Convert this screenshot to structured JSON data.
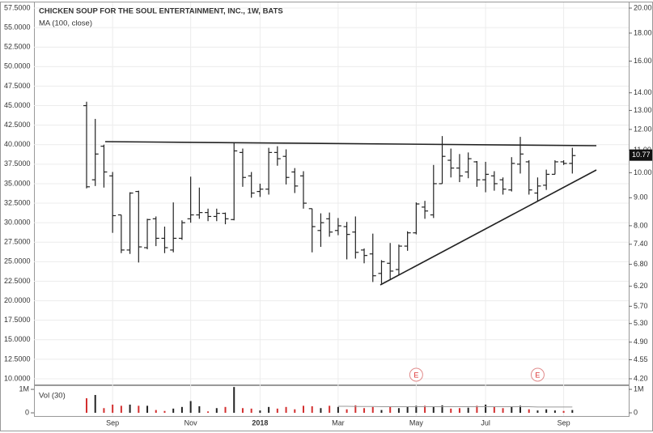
{
  "chart_data": [
    {
      "type": "ohlc",
      "title": "CHICKEN SOUP FOR THE SOUL ENTERTAINMENT, INC., 1W, BATS",
      "subtitle": "MA (100, close)",
      "categories": [
        null,
        null,
        null,
        "Sep",
        null,
        null,
        null,
        null,
        null,
        null,
        null,
        null,
        "Nov",
        null,
        null,
        null,
        null,
        null,
        null,
        null,
        "2018",
        null,
        null,
        null,
        null,
        null,
        null,
        null,
        null,
        "Mar",
        null,
        null,
        null,
        null,
        null,
        null,
        null,
        null,
        "May",
        null,
        null,
        null,
        null,
        null,
        null,
        null,
        "Jul",
        null,
        null,
        null,
        null,
        null,
        null,
        null,
        null,
        "Sep",
        null
      ],
      "events": [
        null,
        null,
        null,
        null,
        null,
        null,
        null,
        null,
        null,
        null,
        null,
        null,
        null,
        null,
        null,
        null,
        null,
        null,
        null,
        null,
        null,
        null,
        null,
        null,
        null,
        null,
        null,
        null,
        null,
        null,
        null,
        null,
        null,
        null,
        null,
        null,
        null,
        null,
        "E",
        null,
        null,
        null,
        null,
        null,
        null,
        null,
        null,
        null,
        null,
        null,
        null,
        null,
        "E",
        null,
        null,
        null,
        null
      ],
      "open": [
        45,
        35.5,
        39.8,
        36,
        31,
        26.5,
        34,
        26.8,
        30.5,
        28,
        26.5,
        28,
        30.5,
        31,
        31.3,
        30.8,
        31.2,
        30.4,
        39,
        36,
        34,
        34.3,
        39,
        38.5,
        36.5,
        36,
        31.8,
        29,
        30.5,
        29,
        29.5,
        28.8,
        26.5,
        26,
        23.5,
        24.8,
        24,
        27,
        28.7,
        32,
        31,
        35,
        38,
        37,
        36.5,
        37.8,
        35.5,
        36,
        35.5,
        34.2,
        37.5,
        37.8,
        33.8,
        34.8,
        36.2,
        37.8,
        37.6
      ],
      "high": [
        45.5,
        43.3,
        40,
        36.5,
        31,
        33.9,
        34.1,
        30.5,
        30.8,
        29.5,
        32.6,
        30.3,
        35.9,
        34.5,
        31.8,
        31.8,
        31.3,
        40.2,
        39.5,
        36.5,
        35,
        39.6,
        39.8,
        39.4,
        37,
        36.6,
        31.8,
        31.2,
        31.3,
        30.6,
        30.1,
        30.8,
        26.7,
        28.6,
        25.2,
        27.4,
        27.2,
        28.9,
        32.6,
        32.8,
        37.4,
        41.1,
        39.5,
        38.8,
        39,
        37.9,
        37.8,
        36.6,
        35.8,
        38.4,
        41,
        38,
        35.8,
        36.8,
        38,
        38,
        39.6
      ],
      "low": [
        34.4,
        34.7,
        34.5,
        28.7,
        26.1,
        26,
        24.9,
        26.6,
        27,
        26.1,
        26.2,
        27.8,
        30,
        30.5,
        30.2,
        30.2,
        29.8,
        30.3,
        34.6,
        33.2,
        33.3,
        33.6,
        37.3,
        34.9,
        33.8,
        31.8,
        26.2,
        26.9,
        28.2,
        28.4,
        25.3,
        25.4,
        24.8,
        22.4,
        22.2,
        22.8,
        23.3,
        26.4,
        28.5,
        30.5,
        30.6,
        35,
        35.8,
        35.2,
        35.7,
        34.6,
        33.9,
        34.1,
        33.6,
        34,
        36.3,
        33.6,
        32.8,
        34.2,
        36.2,
        37.4,
        36.3
      ],
      "close": [
        34.6,
        38.8,
        36.5,
        30.9,
        26.5,
        33.8,
        26.9,
        30.4,
        28,
        26.8,
        28,
        30,
        31,
        31.3,
        30.8,
        31.2,
        30.5,
        39.2,
        35.8,
        33.8,
        34.3,
        39,
        38.2,
        35.8,
        34.7,
        32.5,
        29.5,
        30,
        28.8,
        29.6,
        28.5,
        26.2,
        25.8,
        23.2,
        25,
        23.8,
        27,
        28.7,
        32.4,
        31.5,
        35,
        38.5,
        37,
        36,
        38.2,
        35.5,
        36.2,
        35,
        34.3,
        37.6,
        38.8,
        34.2,
        34.7,
        36.2,
        37.8,
        37.6,
        38.6
      ],
      "color": "#222222",
      "ylim": [
        10,
        57.5
      ],
      "yticks": [
        {
          "value": 10,
          "label": "10.0000"
        },
        {
          "value": 12.5,
          "label": "12.5000"
        },
        {
          "value": 15,
          "label": "15.0000"
        },
        {
          "value": 17.5,
          "label": "17.5000"
        },
        {
          "value": 20,
          "label": "20.0000"
        },
        {
          "value": 22.5,
          "label": "22.5000"
        },
        {
          "value": 25,
          "label": "25.0000"
        },
        {
          "value": 27.5,
          "label": "27.5000"
        },
        {
          "value": 30,
          "label": "30.0000"
        },
        {
          "value": 32.5,
          "label": "32.5000"
        },
        {
          "value": 35,
          "label": "35.0000"
        },
        {
          "value": 37.5,
          "label": "37.5000"
        },
        {
          "value": 40,
          "label": "40.0000"
        },
        {
          "value": 42.5,
          "label": "42.5000"
        },
        {
          "value": 45,
          "label": "45.0000"
        },
        {
          "value": 47.5,
          "label": "47.5000"
        },
        {
          "value": 50,
          "label": "50.0000"
        },
        {
          "value": 52.5,
          "label": "52.5000"
        },
        {
          "value": 55,
          "label": "55.0000"
        },
        {
          "value": 57.5,
          "label": "57.5000"
        }
      ],
      "y2lim": [
        4.2,
        20
      ],
      "y2_log": true,
      "y2ticks": [
        {
          "value": 4.2,
          "label": "4.20"
        },
        {
          "value": 4.55,
          "label": "4.55"
        },
        {
          "value": 4.9,
          "label": "4.90"
        },
        {
          "value": 5.3,
          "label": "5.30"
        },
        {
          "value": 5.7,
          "label": "5.70"
        },
        {
          "value": 6.2,
          "label": "6.20"
        },
        {
          "value": 6.8,
          "label": "6.80"
        },
        {
          "value": 7.4,
          "label": "7.40"
        },
        {
          "value": 8,
          "label": "8.00"
        },
        {
          "value": 9,
          "label": "9.00"
        },
        {
          "value": 10,
          "label": "10.00"
        },
        {
          "value": 11,
          "label": "11.00"
        },
        {
          "value": 12,
          "label": "12.00"
        },
        {
          "value": 13,
          "label": "13.00"
        },
        {
          "value": 14,
          "label": "14.00"
        },
        {
          "value": 16,
          "label": "16.00"
        },
        {
          "value": 18,
          "label": "18.00"
        },
        {
          "value": 20,
          "label": "20.00"
        }
      ],
      "last_price": 10.77,
      "grid": true
    },
    {
      "type": "volume",
      "title": "Vol (30)",
      "values": [
        0.62,
        0.76,
        0.2,
        0.35,
        0.3,
        0.35,
        0.3,
        0.3,
        0.12,
        0.08,
        0.18,
        0.25,
        0.5,
        0.28,
        0.06,
        0.2,
        0.25,
        1.1,
        0.2,
        0.18,
        0.1,
        0.25,
        0.18,
        0.25,
        0.15,
        0.3,
        0.28,
        0.2,
        0.3,
        0.25,
        0.15,
        0.32,
        0.2,
        0.25,
        0.12,
        0.25,
        0.2,
        0.25,
        0.3,
        0.3,
        0.28,
        0.32,
        0.18,
        0.2,
        0.22,
        0.3,
        0.35,
        0.25,
        0.2,
        0.25,
        0.3,
        0.15,
        0.1,
        0.15,
        0.1,
        0.08,
        0.12
      ],
      "ma": [
        null,
        null,
        null,
        null,
        null,
        null,
        null,
        null,
        null,
        null,
        null,
        null,
        null,
        null,
        null,
        null,
        null,
        null,
        null,
        null,
        null,
        null,
        null,
        null,
        null,
        null,
        null,
        null,
        null,
        0.28,
        0.28,
        0.27,
        0.27,
        0.27,
        0.26,
        0.26,
        0.26,
        0.26,
        0.26,
        0.26,
        0.26,
        0.26,
        0.26,
        0.26,
        0.26,
        0.26,
        0.26,
        0.26,
        0.26,
        0.26,
        0.26,
        0.26,
        0.25,
        0.25,
        0.25,
        0.25,
        0.25
      ],
      "up_color": "#222222",
      "down_color": "#d32f2f",
      "ma_color": "#999999",
      "ylim": [
        -0.17,
        1.14
      ],
      "yticks": [
        0,
        {
          "value": 1,
          "label": "1M"
        }
      ]
    }
  ]
}
